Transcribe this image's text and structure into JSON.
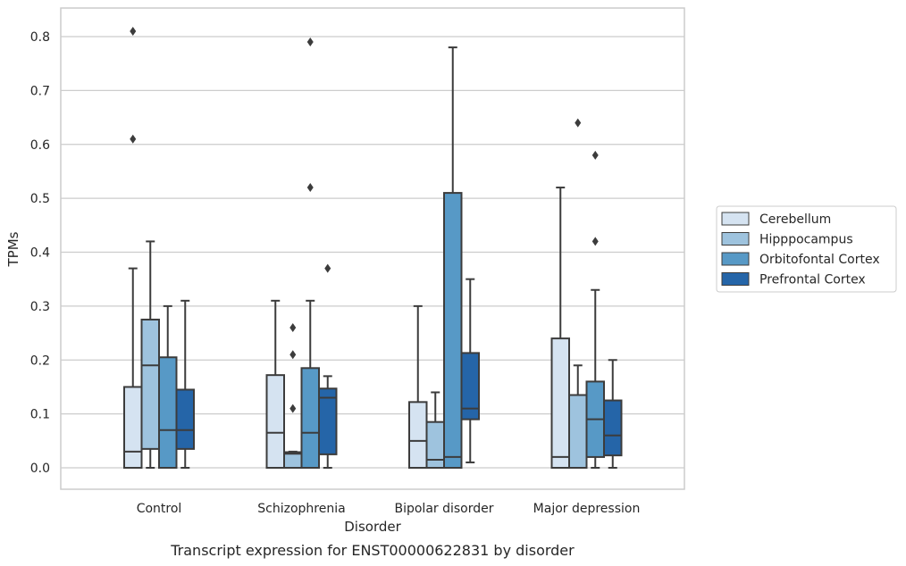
{
  "chart_data": {
    "type": "box",
    "title": "",
    "caption": "Transcript expression for ENST00000622831 by disorder",
    "xlabel": "Disorder",
    "ylabel": "TPMs",
    "ylim": [
      -0.04,
      0.85
    ],
    "yticks": [
      0.0,
      0.1,
      0.2,
      0.3,
      0.4,
      0.5,
      0.6,
      0.7,
      0.8
    ],
    "ytick_labels": [
      "0.0",
      "0.1",
      "0.2",
      "0.3",
      "0.4",
      "0.5",
      "0.6",
      "0.7",
      "0.8"
    ],
    "grid": "horizontal",
    "legend_position": "right",
    "categories": [
      "Control",
      "Schizophrenia",
      "Bipolar disorder",
      "Major depression"
    ],
    "series": [
      {
        "name": "Cerebellum",
        "color": "#d5e3f1",
        "boxes": [
          {
            "q1": 0.0,
            "median": 0.03,
            "q3": 0.15,
            "whislo": 0.0,
            "whishi": 0.37,
            "fliers": [
              0.61,
              0.81
            ]
          },
          {
            "q1": 0.0,
            "median": 0.065,
            "q3": 0.172,
            "whislo": 0.0,
            "whishi": 0.31,
            "fliers": []
          },
          {
            "q1": 0.0,
            "median": 0.05,
            "q3": 0.122,
            "whislo": 0.0,
            "whishi": 0.3,
            "fliers": []
          },
          {
            "q1": 0.0,
            "median": 0.02,
            "q3": 0.24,
            "whislo": 0.0,
            "whishi": 0.52,
            "fliers": []
          }
        ]
      },
      {
        "name": "Hipppocampus",
        "color": "#9ec3de",
        "boxes": [
          {
            "q1": 0.035,
            "median": 0.19,
            "q3": 0.275,
            "whislo": 0.0,
            "whishi": 0.42,
            "fliers": []
          },
          {
            "q1": 0.0,
            "median": 0.026,
            "q3": 0.029,
            "whislo": 0.0,
            "whishi": 0.03,
            "fliers": [
              0.11,
              0.21,
              0.26
            ]
          },
          {
            "q1": 0.0,
            "median": 0.015,
            "q3": 0.085,
            "whislo": 0.0,
            "whishi": 0.14,
            "fliers": []
          },
          {
            "q1": 0.0,
            "median": 0.0,
            "q3": 0.135,
            "whislo": 0.0,
            "whishi": 0.19,
            "fliers": [
              0.64
            ]
          }
        ]
      },
      {
        "name": "Orbitofontal Cortex",
        "color": "#5799c6",
        "boxes": [
          {
            "q1": 0.0,
            "median": 0.07,
            "q3": 0.205,
            "whislo": 0.0,
            "whishi": 0.3,
            "fliers": []
          },
          {
            "q1": 0.0,
            "median": 0.065,
            "q3": 0.185,
            "whislo": 0.0,
            "whishi": 0.31,
            "fliers": [
              0.52,
              0.79
            ]
          },
          {
            "q1": 0.0,
            "median": 0.02,
            "q3": 0.51,
            "whislo": 0.0,
            "whishi": 0.78,
            "fliers": []
          },
          {
            "q1": 0.02,
            "median": 0.09,
            "q3": 0.16,
            "whislo": 0.0,
            "whishi": 0.33,
            "fliers": [
              0.42,
              0.58
            ]
          }
        ]
      },
      {
        "name": "Prefrontal Cortex",
        "color": "#2565a8",
        "boxes": [
          {
            "q1": 0.035,
            "median": 0.07,
            "q3": 0.145,
            "whislo": 0.0,
            "whishi": 0.31,
            "fliers": []
          },
          {
            "q1": 0.025,
            "median": 0.13,
            "q3": 0.147,
            "whislo": 0.0,
            "whishi": 0.17,
            "fliers": [
              0.37
            ]
          },
          {
            "q1": 0.09,
            "median": 0.11,
            "q3": 0.213,
            "whislo": 0.01,
            "whishi": 0.35,
            "fliers": []
          },
          {
            "q1": 0.023,
            "median": 0.06,
            "q3": 0.125,
            "whislo": 0.0,
            "whishi": 0.2,
            "fliers": []
          }
        ]
      }
    ]
  }
}
